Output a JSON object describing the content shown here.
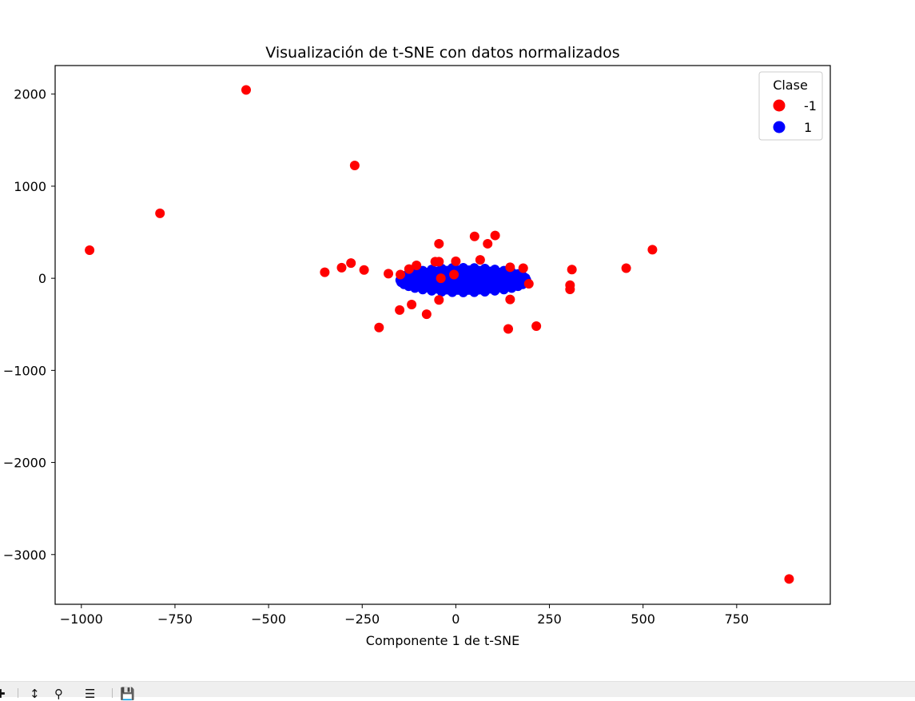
{
  "chart_data": {
    "type": "scatter",
    "title": "Visualización de t-SNE con datos normalizados",
    "xlabel": "Componente 1 de t-SNE",
    "ylabel": "",
    "xlim": [
      -1070,
      1000
    ],
    "ylim": [
      -3540,
      2310
    ],
    "xticks": [
      -1000,
      -750,
      -500,
      -250,
      0,
      250,
      500,
      750
    ],
    "xtick_labels": [
      "−1000",
      "−750",
      "−500",
      "−250",
      "0",
      "250",
      "500",
      "750"
    ],
    "yticks": [
      -3000,
      -2000,
      -1000,
      0,
      1000,
      2000
    ],
    "ytick_labels": [
      "−3000",
      "−2000",
      "−1000",
      "0",
      "1000",
      "2000"
    ],
    "grid": false,
    "legend": {
      "title": "Clase",
      "position": "top-right"
    },
    "series": [
      {
        "name": "-1",
        "color": "#ff0000",
        "points": [
          [
            -978,
            305
          ],
          [
            -790,
            705
          ],
          [
            -560,
            2045
          ],
          [
            -270,
            1225
          ],
          [
            -350,
            65
          ],
          [
            -305,
            115
          ],
          [
            -280,
            165
          ],
          [
            -245,
            90
          ],
          [
            -180,
            50
          ],
          [
            -148,
            40
          ],
          [
            -125,
            100
          ],
          [
            -105,
            140
          ],
          [
            -55,
            180
          ],
          [
            -45,
            180
          ],
          [
            -45,
            375
          ],
          [
            -40,
            0
          ],
          [
            -5,
            40
          ],
          [
            0,
            185
          ],
          [
            50,
            455
          ],
          [
            65,
            200
          ],
          [
            85,
            375
          ],
          [
            105,
            465
          ],
          [
            145,
            120
          ],
          [
            180,
            110
          ],
          [
            195,
            -60
          ],
          [
            310,
            95
          ],
          [
            305,
            -75
          ],
          [
            305,
            -120
          ],
          [
            455,
            110
          ],
          [
            525,
            310
          ],
          [
            -205,
            -535
          ],
          [
            -150,
            -345
          ],
          [
            -118,
            -285
          ],
          [
            -78,
            -390
          ],
          [
            -45,
            -235
          ],
          [
            140,
            -550
          ],
          [
            145,
            -230
          ],
          [
            215,
            -520
          ],
          [
            890,
            -3265
          ]
        ]
      },
      {
        "name": "1",
        "color": "#0000ff",
        "cluster": {
          "center": [
            20,
            -20
          ],
          "radius_x": 175,
          "radius_y": 160
        }
      }
    ]
  },
  "toolbar": {
    "icons": [
      "pan-icon",
      "move-icon",
      "zoom-icon",
      "configure-icon",
      "save-icon"
    ]
  }
}
